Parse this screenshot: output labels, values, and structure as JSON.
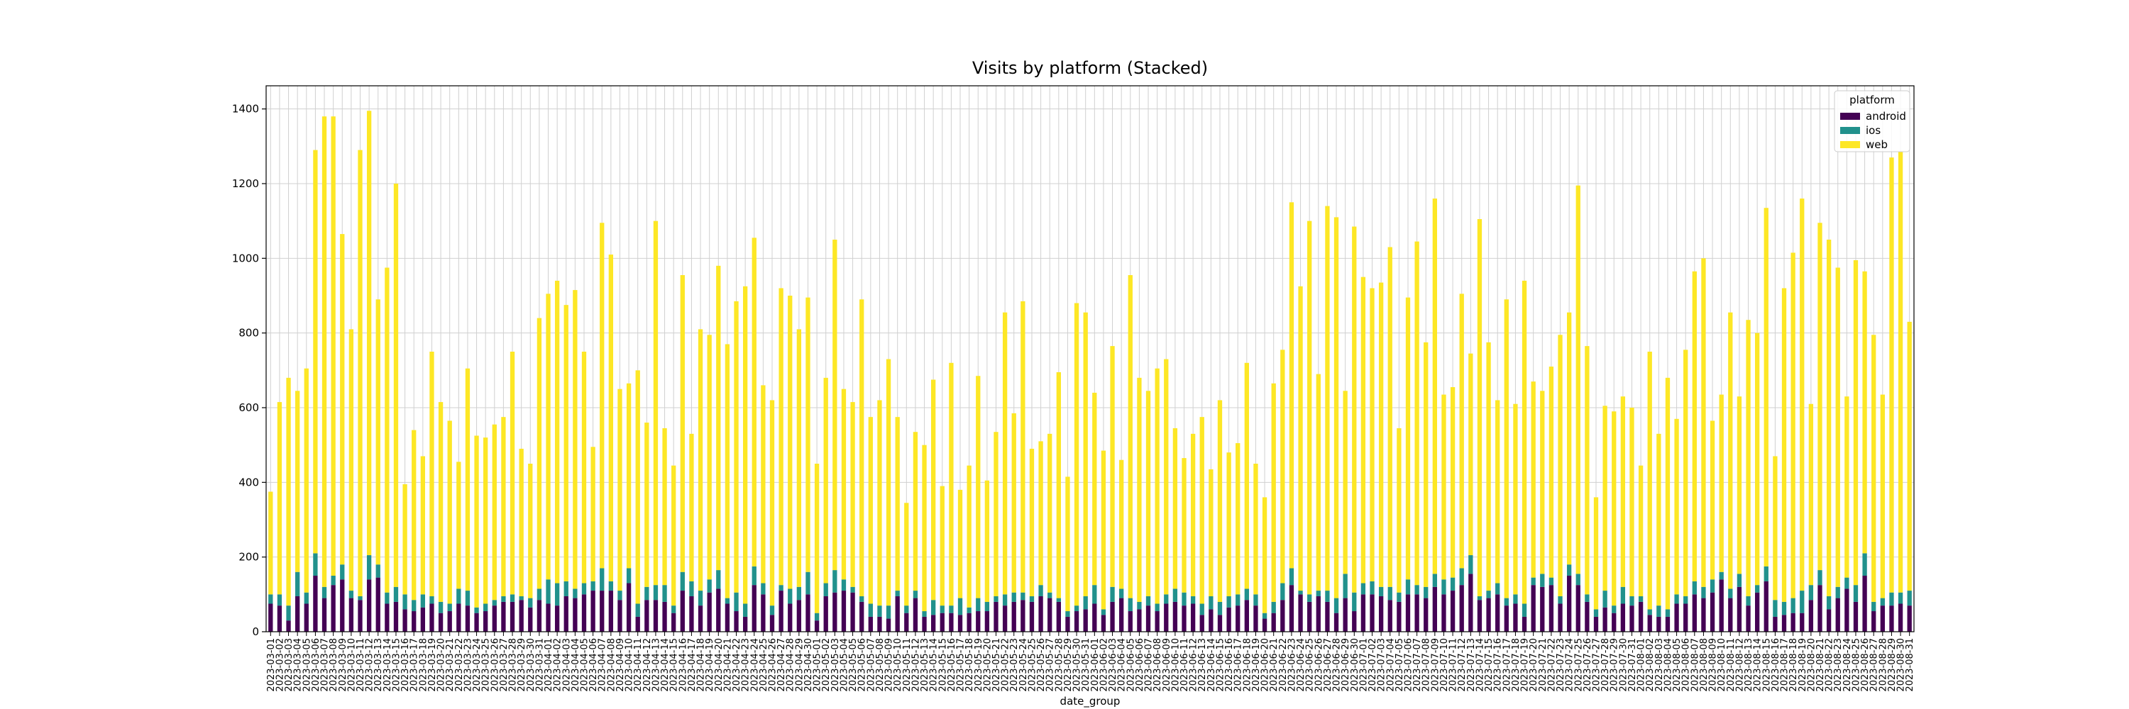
{
  "chart_data": {
    "type": "bar",
    "stacked": true,
    "title": "Visits by platform (Stacked)",
    "x_label": "date_group",
    "legend_title": "platform",
    "legend_position": "upper right",
    "grid": true,
    "ylim": [
      0,
      1462
    ],
    "yticks": [
      0,
      200,
      400,
      600,
      800,
      1000,
      1200,
      1400
    ],
    "categories": [
      "2023-03-01",
      "2023-03-02",
      "2023-03-03",
      "2023-03-04",
      "2023-03-05",
      "2023-03-06",
      "2023-03-07",
      "2023-03-08",
      "2023-03-09",
      "2023-03-10",
      "2023-03-11",
      "2023-03-12",
      "2023-03-13",
      "2023-03-14",
      "2023-03-15",
      "2023-03-16",
      "2023-03-17",
      "2023-03-18",
      "2023-03-19",
      "2023-03-20",
      "2023-03-21",
      "2023-03-22",
      "2023-03-23",
      "2023-03-24",
      "2023-03-25",
      "2023-03-26",
      "2023-03-27",
      "2023-03-28",
      "2023-03-29",
      "2023-03-30",
      "2023-03-31",
      "2023-04-01",
      "2023-04-02",
      "2023-04-03",
      "2023-04-04",
      "2023-04-05",
      "2023-04-06",
      "2023-04-07",
      "2023-04-08",
      "2023-04-09",
      "2023-04-10",
      "2023-04-11",
      "2023-04-12",
      "2023-04-13",
      "2023-04-14",
      "2023-04-15",
      "2023-04-16",
      "2023-04-17",
      "2023-04-18",
      "2023-04-19",
      "2023-04-20",
      "2023-04-21",
      "2023-04-22",
      "2023-04-23",
      "2023-04-24",
      "2023-04-25",
      "2023-04-26",
      "2023-04-27",
      "2023-04-28",
      "2023-04-29",
      "2023-04-30",
      "2023-05-01",
      "2023-05-02",
      "2023-05-03",
      "2023-05-04",
      "2023-05-05",
      "2023-05-06",
      "2023-05-07",
      "2023-05-08",
      "2023-05-09",
      "2023-05-10",
      "2023-05-11",
      "2023-05-12",
      "2023-05-13",
      "2023-05-14",
      "2023-05-15",
      "2023-05-16",
      "2023-05-17",
      "2023-05-18",
      "2023-05-19",
      "2023-05-20",
      "2023-05-21",
      "2023-05-22",
      "2023-05-23",
      "2023-05-24",
      "2023-05-25",
      "2023-05-26",
      "2023-05-27",
      "2023-05-28",
      "2023-05-29",
      "2023-05-30",
      "2023-05-31",
      "2023-06-01",
      "2023-06-02",
      "2023-06-03",
      "2023-06-04",
      "2023-06-05",
      "2023-06-06",
      "2023-06-07",
      "2023-06-08",
      "2023-06-09",
      "2023-06-10",
      "2023-06-11",
      "2023-06-12",
      "2023-06-13",
      "2023-06-14",
      "2023-06-15",
      "2023-06-16",
      "2023-06-17",
      "2023-06-18",
      "2023-06-19",
      "2023-06-20",
      "2023-06-21",
      "2023-06-22",
      "2023-06-23",
      "2023-06-24",
      "2023-06-25",
      "2023-06-26",
      "2023-06-27",
      "2023-06-28",
      "2023-06-29",
      "2023-06-30",
      "2023-07-01",
      "2023-07-02",
      "2023-07-03",
      "2023-07-04",
      "2023-07-05",
      "2023-07-06",
      "2023-07-07",
      "2023-07-08",
      "2023-07-09",
      "2023-07-10",
      "2023-07-11",
      "2023-07-12",
      "2023-07-13",
      "2023-07-14",
      "2023-07-15",
      "2023-07-16",
      "2023-07-17",
      "2023-07-18",
      "2023-07-19",
      "2023-07-20",
      "2023-07-21",
      "2023-07-22",
      "2023-07-23",
      "2023-07-24",
      "2023-07-25",
      "2023-07-26",
      "2023-07-27",
      "2023-07-28",
      "2023-07-29",
      "2023-07-30",
      "2023-07-31",
      "2023-08-01",
      "2023-08-02",
      "2023-08-03",
      "2023-08-04",
      "2023-08-05",
      "2023-08-06",
      "2023-08-07",
      "2023-08-08",
      "2023-08-09",
      "2023-08-10",
      "2023-08-11",
      "2023-08-12",
      "2023-08-13",
      "2023-08-14",
      "2023-08-15",
      "2023-08-16",
      "2023-08-17",
      "2023-08-18",
      "2023-08-19",
      "2023-08-20",
      "2023-08-21",
      "2023-08-22",
      "2023-08-23",
      "2023-08-24",
      "2023-08-25",
      "2023-08-26",
      "2023-08-27",
      "2023-08-28",
      "2023-08-29",
      "2023-08-30",
      "2023-08-31"
    ],
    "series": [
      {
        "name": "android",
        "color": "#440154",
        "values": [
          75,
          70,
          30,
          95,
          75,
          150,
          90,
          125,
          140,
          90,
          85,
          140,
          145,
          75,
          80,
          60,
          55,
          65,
          75,
          50,
          55,
          75,
          70,
          50,
          55,
          70,
          80,
          80,
          85,
          65,
          85,
          75,
          70,
          95,
          90,
          100,
          110,
          110,
          110,
          85,
          130,
          40,
          85,
          85,
          80,
          50,
          110,
          95,
          70,
          105,
          115,
          75,
          55,
          40,
          125,
          100,
          45,
          110,
          75,
          85,
          100,
          30,
          95,
          105,
          110,
          105,
          80,
          40,
          40,
          35,
          95,
          50,
          90,
          40,
          45,
          50,
          50,
          45,
          50,
          55,
          55,
          80,
          70,
          80,
          85,
          80,
          95,
          90,
          80,
          40,
          55,
          60,
          75,
          45,
          80,
          90,
          55,
          60,
          70,
          55,
          75,
          80,
          70,
          75,
          45,
          60,
          45,
          65,
          70,
          85,
          70,
          35,
          50,
          85,
          125,
          100,
          80,
          95,
          80,
          50,
          90,
          55,
          100,
          100,
          95,
          85,
          80,
          100,
          100,
          90,
          120,
          100,
          110,
          125,
          155,
          85,
          90,
          100,
          70,
          75,
          40,
          125,
          120,
          125,
          75,
          150,
          125,
          80,
          40,
          65,
          50,
          75,
          70,
          80,
          45,
          40,
          40,
          75,
          75,
          100,
          90,
          105,
          140,
          90,
          120,
          70,
          105,
          135,
          40,
          45,
          50,
          50,
          85,
          125,
          60,
          90,
          115,
          80,
          150,
          55,
          70,
          70,
          75,
          70
        ]
      },
      {
        "name": "ios",
        "color": "#21918c",
        "values": [
          25,
          30,
          40,
          65,
          30,
          60,
          30,
          25,
          40,
          20,
          10,
          65,
          35,
          30,
          40,
          40,
          30,
          35,
          20,
          30,
          20,
          40,
          40,
          15,
          20,
          15,
          15,
          20,
          10,
          25,
          30,
          65,
          60,
          40,
          25,
          30,
          25,
          60,
          25,
          25,
          40,
          35,
          35,
          40,
          45,
          20,
          50,
          40,
          40,
          35,
          50,
          15,
          50,
          35,
          50,
          30,
          25,
          15,
          40,
          35,
          60,
          20,
          35,
          60,
          30,
          15,
          15,
          35,
          30,
          35,
          15,
          20,
          20,
          15,
          40,
          20,
          20,
          45,
          15,
          35,
          25,
          15,
          30,
          25,
          20,
          15,
          30,
          15,
          10,
          15,
          15,
          35,
          50,
          15,
          40,
          25,
          35,
          20,
          25,
          20,
          25,
          35,
          35,
          20,
          30,
          35,
          35,
          30,
          30,
          30,
          30,
          15,
          30,
          45,
          45,
          10,
          20,
          15,
          30,
          40,
          65,
          50,
          30,
          35,
          25,
          35,
          25,
          40,
          25,
          30,
          35,
          40,
          35,
          45,
          50,
          10,
          20,
          30,
          20,
          25,
          35,
          20,
          35,
          20,
          20,
          30,
          30,
          20,
          20,
          45,
          20,
          45,
          25,
          15,
          15,
          30,
          20,
          25,
          20,
          35,
          30,
          35,
          20,
          25,
          35,
          25,
          20,
          40,
          45,
          35,
          40,
          60,
          40,
          40,
          35,
          30,
          30,
          45,
          60,
          25,
          20,
          35,
          30,
          40
        ]
      },
      {
        "name": "web",
        "color": "#fde725",
        "values": [
          275,
          515,
          610,
          485,
          600,
          1080,
          1260,
          1230,
          885,
          700,
          1195,
          1190,
          710,
          870,
          1080,
          295,
          455,
          370,
          655,
          535,
          490,
          340,
          595,
          460,
          445,
          470,
          480,
          650,
          395,
          360,
          725,
          765,
          810,
          740,
          800,
          620,
          360,
          925,
          875,
          540,
          495,
          625,
          440,
          975,
          420,
          375,
          795,
          395,
          700,
          655,
          815,
          680,
          780,
          850,
          880,
          530,
          550,
          795,
          785,
          690,
          735,
          400,
          550,
          885,
          510,
          495,
          795,
          500,
          550,
          660,
          465,
          275,
          425,
          445,
          590,
          320,
          650,
          290,
          380,
          595,
          325,
          440,
          755,
          480,
          780,
          395,
          385,
          425,
          605,
          360,
          810,
          760,
          515,
          425,
          645,
          345,
          865,
          600,
          550,
          630,
          630,
          430,
          360,
          435,
          500,
          340,
          540,
          385,
          405,
          605,
          350,
          310,
          585,
          625,
          980,
          815,
          1000,
          580,
          1030,
          1020,
          490,
          980,
          820,
          785,
          815,
          910,
          440,
          755,
          920,
          655,
          1005,
          495,
          510,
          735,
          540,
          1010,
          665,
          490,
          800,
          510,
          865,
          525,
          490,
          565,
          700,
          675,
          1040,
          665,
          300,
          495,
          520,
          510,
          505,
          350,
          690,
          460,
          620,
          470,
          660,
          830,
          880,
          425,
          475,
          740,
          475,
          740,
          675,
          960,
          385,
          840,
          925,
          1050,
          485,
          930,
          955,
          855,
          485,
          870,
          755,
          715,
          545,
          1165,
          1180,
          720
        ]
      }
    ]
  }
}
